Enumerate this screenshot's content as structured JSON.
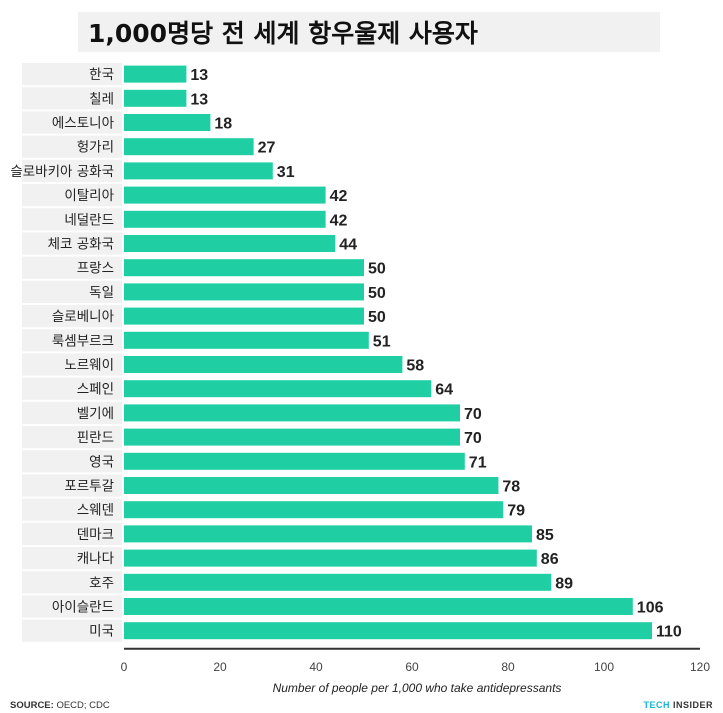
{
  "chart_data": {
    "type": "bar",
    "orientation": "horizontal",
    "title": "1,000명당 전 세계 항우울제 사용자",
    "xlabel": "Number of people per 1,000 who take antidepressants",
    "xlim": [
      0,
      120
    ],
    "xticks": [
      "0",
      "20",
      "40",
      "60",
      "80",
      "100",
      "120"
    ],
    "grid": false,
    "categories": [
      "한국",
      "칠레",
      "에스토니아",
      "헝가리",
      "슬로바키아 공화국",
      "이탈리아",
      "네덜란드",
      "체코 공화국",
      "프랑스",
      "독일",
      "슬로베니아",
      "룩셈부르크",
      "노르웨이",
      "스페인",
      "벨기에",
      "핀란드",
      "영국",
      "포르투갈",
      "스웨덴",
      "덴마크",
      "캐나다",
      "호주",
      "아이슬란드",
      "미국"
    ],
    "values": [
      13,
      13,
      18,
      27,
      31,
      42,
      42,
      44,
      50,
      50,
      50,
      51,
      58,
      64,
      70,
      70,
      71,
      78,
      79,
      85,
      86,
      89,
      106,
      110
    ],
    "bar_color": "#1fcfa3",
    "label_band_color": "#f1f1f1"
  },
  "footer": {
    "source_label": "SOURCE:",
    "source_text": "OECD; CDC",
    "brand_part1": "TECH",
    "brand_part2": "INSIDER",
    "brand_color": "#19b6d6"
  }
}
